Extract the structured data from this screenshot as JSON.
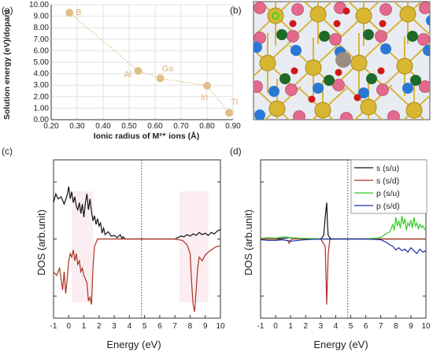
{
  "panel_labels": {
    "a": "(a)",
    "b": "(b)",
    "c": "(c)",
    "d": "(d)"
  },
  "axis_text": {
    "a_x": "Ionic radius of M³⁺ ions (Å)",
    "a_y": "Solution energy (eV)/dopant",
    "c_x": "Energy (eV)",
    "c_y": "DOS (arb.unit)",
    "d_x": "Energy (eV)",
    "d_y": "DOS (arb.unit)"
  },
  "colors": {
    "marker": "#e0bf88",
    "marker_label": "#d9b27a",
    "dotted_line": "#2c6fb0",
    "s_up": "#111111",
    "s_down": "#a83220",
    "p_up": "#33cc22",
    "p_down": "#1a2ea6",
    "shade": "#f7dce4"
  },
  "legend": {
    "s_up": "s (s/u)",
    "s_down": "s (s/d)",
    "p_up": "p (s/u)",
    "p_down": "p (s/d)"
  },
  "chart_data": [
    {
      "panel": "a",
      "type": "scatter",
      "title": "",
      "xlabel": "Ionic radius of M³⁺ ions (Å)",
      "ylabel": "Solution energy (eV)/dopant",
      "xlim": [
        0.2,
        0.9
      ],
      "ylim": [
        0.0,
        10.0
      ],
      "x_ticks": [
        "0.20",
        "0.30",
        "0.40",
        "0.50",
        "0.60",
        "0.70",
        "0.80",
        "0.90"
      ],
      "y_ticks": [
        "0.00",
        "1.00",
        "2.00",
        "3.00",
        "4.00",
        "5.00",
        "6.00",
        "7.00",
        "8.00",
        "9.00",
        "10.00"
      ],
      "grid": true,
      "points": [
        {
          "label": "B",
          "x": 0.27,
          "y": 9.3
        },
        {
          "label": "Al",
          "x": 0.535,
          "y": 4.25
        },
        {
          "label": "Ga",
          "x": 0.62,
          "y": 3.6
        },
        {
          "label": "In",
          "x": 0.8,
          "y": 2.95
        },
        {
          "label": "Tl",
          "x": 0.885,
          "y": 0.6
        }
      ]
    },
    {
      "panel": "c",
      "type": "line",
      "xlabel": "Energy (eV)",
      "ylabel": "DOS (arb.unit)",
      "xlim": [
        -1,
        10
      ],
      "ylim": [
        -1,
        1
      ],
      "x_ticks": [
        "-1",
        "0",
        "1",
        "2",
        "3",
        "4",
        "5",
        "6",
        "7",
        "8",
        "9",
        "10"
      ],
      "fermi_level": 4.8,
      "series": [
        {
          "key": "s_up",
          "x": [
            -1,
            -0.85,
            -0.7,
            -0.5,
            -0.3,
            -0.1,
            0,
            0.1,
            0.2,
            0.3,
            0.4,
            0.5,
            0.6,
            0.7,
            0.8,
            0.9,
            1.0,
            1.1,
            1.2,
            1.3,
            1.4,
            1.5,
            1.6,
            1.7,
            1.8,
            1.9,
            2.0,
            2.1,
            2.2,
            2.3,
            2.4,
            2.6,
            2.8,
            3.0,
            3.2,
            3.4,
            3.5,
            3.6,
            3.7,
            4.0,
            5.0,
            6.0,
            7.0,
            7.2,
            7.4,
            7.6,
            7.8,
            8.0,
            8.2,
            8.4,
            8.6,
            8.8,
            9.0,
            9.2,
            9.4,
            9.6,
            9.8,
            10.0
          ],
          "y": [
            0.5,
            0.62,
            0.55,
            0.58,
            0.48,
            0.6,
            0.72,
            0.55,
            0.65,
            0.5,
            0.58,
            0.45,
            0.4,
            0.5,
            0.35,
            0.48,
            0.3,
            0.5,
            0.62,
            0.4,
            0.55,
            0.38,
            0.25,
            0.32,
            0.2,
            0.28,
            0.18,
            0.22,
            0.08,
            0.15,
            0.06,
            0.1,
            0.04,
            0.05,
            0.02,
            0.06,
            0.01,
            0.03,
            0.0,
            0.0,
            0.0,
            0.0,
            0.0,
            0.02,
            0.04,
            0.03,
            0.06,
            0.04,
            0.07,
            0.05,
            0.09,
            0.06,
            0.08,
            0.05,
            0.09,
            0.07,
            0.11,
            0.13
          ]
        },
        {
          "key": "s_down",
          "x": [
            -1,
            -0.8,
            -0.6,
            -0.5,
            -0.4,
            -0.3,
            -0.2,
            -0.1,
            0,
            0.1,
            0.2,
            0.3,
            0.4,
            0.5,
            0.6,
            0.7,
            0.8,
            0.9,
            1.0,
            1.1,
            1.2,
            1.3,
            1.4,
            1.5,
            1.6,
            1.7,
            1.8,
            1.9,
            2.0,
            2.5,
            3.0,
            3.5,
            4.0,
            5.0,
            6.0,
            7.0,
            7.5,
            7.8,
            8.0,
            8.1,
            8.2,
            8.3,
            8.4,
            8.5,
            8.6,
            8.8,
            9.0,
            9.2,
            9.4,
            9.6,
            9.8,
            10.0
          ],
          "y": [
            -0.45,
            -0.5,
            -0.4,
            -0.55,
            -0.7,
            -0.45,
            -0.75,
            -0.55,
            -0.3,
            -0.2,
            -0.25,
            -0.15,
            -0.3,
            -0.2,
            -0.35,
            -0.3,
            -0.45,
            -0.4,
            -0.5,
            -0.55,
            -0.6,
            -0.85,
            -0.8,
            -0.9,
            -0.4,
            -0.1,
            -0.05,
            0,
            0,
            0,
            0,
            0,
            0,
            0,
            0,
            0,
            -0.02,
            -0.08,
            -0.2,
            -0.6,
            -0.9,
            -1.0,
            -0.7,
            -0.4,
            -0.25,
            -0.3,
            -0.22,
            -0.18,
            -0.15,
            -0.12,
            -0.1,
            -0.1
          ]
        }
      ]
    },
    {
      "panel": "d",
      "type": "line",
      "xlabel": "Energy (eV)",
      "ylabel": "DOS (arb.unit)",
      "xlim": [
        -1,
        10
      ],
      "ylim": [
        -1,
        1
      ],
      "x_ticks": [
        "-1",
        "0",
        "1",
        "2",
        "3",
        "4",
        "5",
        "6",
        "7",
        "8",
        "9",
        "10"
      ],
      "fermi_level": 4.8,
      "series": [
        {
          "name": "s (s/u)",
          "key": "s_up",
          "x": [
            -1,
            0,
            1,
            2,
            3,
            3.2,
            3.3,
            3.4,
            3.45,
            3.5,
            3.6,
            3.7,
            3.8,
            4.0,
            5.0,
            7.0,
            10.0
          ],
          "y": [
            0,
            0,
            0.02,
            0,
            0,
            0.05,
            0.3,
            0.5,
            0.2,
            0.05,
            0.02,
            0,
            0,
            0,
            0,
            0,
            0
          ]
        },
        {
          "name": "s (s/d)",
          "key": "s_down",
          "x": [
            -1,
            0,
            0.8,
            0.9,
            1.0,
            1.1,
            2,
            3,
            3.3,
            3.4,
            3.5,
            3.6,
            3.7,
            4,
            5,
            10
          ],
          "y": [
            0,
            0,
            -0.02,
            -0.06,
            -0.02,
            0,
            0,
            0,
            -0.1,
            -0.9,
            -0.2,
            -0.02,
            0,
            0,
            0,
            0
          ]
        },
        {
          "name": "p (s/u)",
          "key": "p_up",
          "x": [
            -1,
            -0.5,
            0,
            0.5,
            1,
            1.5,
            2,
            3,
            4,
            5,
            6,
            7,
            7.2,
            7.4,
            7.6,
            7.8,
            7.9,
            8.0,
            8.1,
            8.2,
            8.3,
            8.4,
            8.5,
            8.6,
            8.7,
            8.8,
            8.9,
            9.0,
            9.1,
            9.2,
            9.3,
            9.4,
            9.5,
            9.6,
            9.7,
            9.8,
            9.9,
            10.0
          ],
          "y": [
            0.01,
            0.02,
            0.01,
            0.03,
            0.02,
            0.01,
            0.01,
            0,
            0,
            0,
            0,
            0.02,
            0.05,
            0.08,
            0.1,
            0.2,
            0.12,
            0.3,
            0.18,
            0.25,
            0.15,
            0.32,
            0.2,
            0.28,
            0.12,
            0.22,
            0.18,
            0.26,
            0.15,
            0.3,
            0.18,
            0.22,
            0.14,
            0.2,
            0.16,
            0.18,
            0.14,
            0.12
          ]
        },
        {
          "name": "p (s/d)",
          "key": "p_down",
          "x": [
            -1,
            -0.5,
            0,
            0.5,
            1,
            1.5,
            2,
            3,
            4,
            5,
            6,
            7,
            7.2,
            7.4,
            7.6,
            7.8,
            8.0,
            8.2,
            8.4,
            8.6,
            8.8,
            9.0,
            9.2,
            9.4,
            9.6,
            9.8,
            10.0
          ],
          "y": [
            -0.01,
            -0.02,
            -0.02,
            -0.01,
            -0.03,
            -0.02,
            -0.01,
            0,
            0,
            0,
            0,
            -0.01,
            -0.03,
            -0.05,
            -0.08,
            -0.1,
            -0.15,
            -0.12,
            -0.16,
            -0.14,
            -0.18,
            -0.12,
            -0.16,
            -0.2,
            -0.14,
            -0.18,
            -0.16
          ]
        }
      ]
    }
  ]
}
